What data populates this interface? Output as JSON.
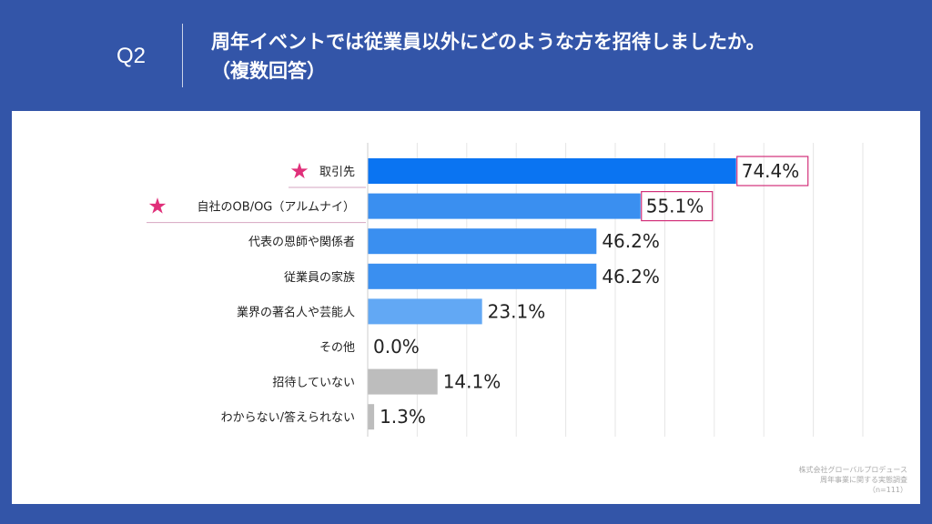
{
  "header": {
    "question_no": "Q2",
    "title_line1": "周年イベントでは従業員以外にどのような方を招待しましたか。",
    "title_line2": "（複数回答）"
  },
  "credit": {
    "line1": "株式会社グローバルプロデュース",
    "line2": "周年事業に関する実態調査",
    "line3": "（n=111）"
  },
  "colors": {
    "background": "#3355a8",
    "panel": "#ffffff",
    "highlight_star": "#e0307a",
    "highlight_box": "#d2307a"
  },
  "chart_data": {
    "type": "bar",
    "orientation": "horizontal",
    "categories": [
      "取引先",
      "自社のOB/OG（アルムナイ）",
      "代表の恩師や関係者",
      "従業員の家族",
      "業界の著名人や芸能人",
      "その他",
      "招待していない",
      "わからない/答えられない"
    ],
    "values": [
      74.4,
      55.1,
      46.2,
      46.2,
      23.1,
      0.0,
      14.1,
      1.3
    ],
    "value_labels": [
      "74.4%",
      "55.1%",
      "46.2%",
      "46.2%",
      "23.1%",
      "0.0%",
      "14.1%",
      "1.3%"
    ],
    "bar_colors": [
      "#0a74f2",
      "#3a8ff0",
      "#3a8ff0",
      "#3a8ff0",
      "#62a8f4",
      "#62a8f4",
      "#bdbdbd",
      "#bdbdbd"
    ],
    "highlighted": [
      true,
      true,
      false,
      false,
      false,
      false,
      false,
      false
    ],
    "xlim": [
      0,
      100
    ],
    "grid": true,
    "title": "",
    "xlabel": "",
    "ylabel": ""
  }
}
